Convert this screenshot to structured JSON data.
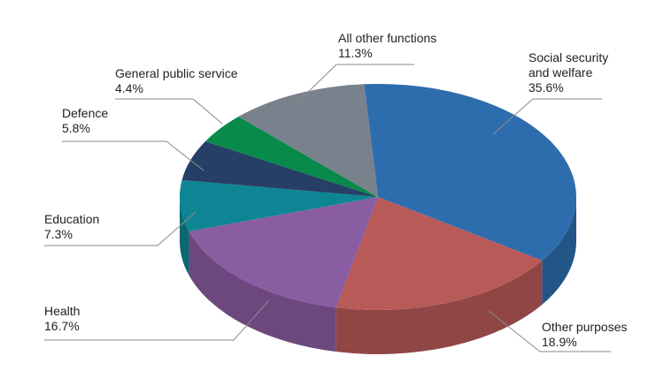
{
  "chart_data": {
    "type": "pie",
    "style": "3d",
    "slices": [
      {
        "label_lines": [
          "Social security",
          "and welfare"
        ],
        "value_label": "35.6%",
        "value": 35.6,
        "color": "#2E6DAD"
      },
      {
        "label_lines": [
          "Other purposes"
        ],
        "value_label": "18.9%",
        "value": 18.9,
        "color": "#B85A58"
      },
      {
        "label_lines": [
          "Health"
        ],
        "value_label": "16.7%",
        "value": 16.7,
        "color": "#8A5CA2"
      },
      {
        "label_lines": [
          "Education"
        ],
        "value_label": "7.3%",
        "value": 7.3,
        "color": "#0E8594"
      },
      {
        "label_lines": [
          "Defence"
        ],
        "value_label": "5.8%",
        "value": 5.8,
        "color": "#253F66"
      },
      {
        "label_lines": [
          "General public service"
        ],
        "value_label": "4.4%",
        "value": 4.4,
        "color": "#078A4A"
      },
      {
        "label_lines": [
          "All other functions"
        ],
        "value_label": "11.3%",
        "value": 11.3,
        "color": "#79818C"
      }
    ],
    "legend": "none",
    "data_labels": "outside with leader lines"
  }
}
